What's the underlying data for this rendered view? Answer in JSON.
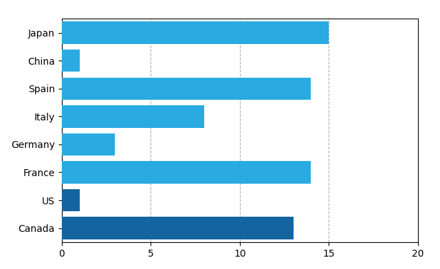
{
  "chart_data": {
    "type": "bar",
    "orientation": "horizontal",
    "categories": [
      "Japan",
      "China",
      "Spain",
      "Italy",
      "Germany",
      "France",
      "US",
      "Canada"
    ],
    "values": [
      15,
      1,
      14,
      8,
      3,
      14,
      1,
      13
    ],
    "colors": [
      "#29ABE2",
      "#29ABE2",
      "#29ABE2",
      "#29ABE2",
      "#29ABE2",
      "#29ABE2",
      "#1464A0",
      "#1464A0"
    ],
    "xlim": [
      0,
      20
    ],
    "xticks": [
      0,
      5,
      10,
      15,
      20
    ],
    "grid": true
  }
}
